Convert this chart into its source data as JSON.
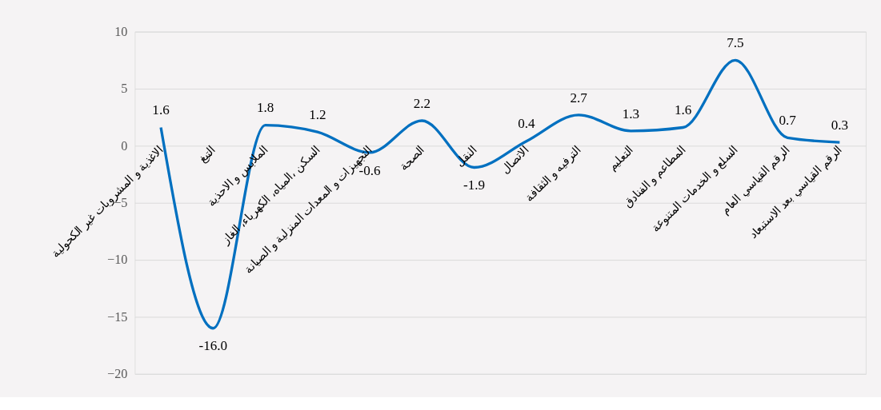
{
  "chart_data": {
    "type": "line",
    "categories": [
      "الاغذية و المشروبات غير الكحولية",
      "التبغ",
      "الملابس و الاحذية",
      "السكن ،المياه، الكهرباء، الغاز",
      "التجهيزات و المعدات المنزلية و الصيانة",
      "الصحة",
      "النقل",
      "الاتصال",
      "الترفيه و الثقافة",
      "التعليم",
      "المطاعم و الفنادق",
      "السلع و الخدمات المتنوعة",
      "الرقم القياسي العام",
      "الرقم القياسي بعد الاستبعاد"
    ],
    "series": [
      {
        "color": "#0070c0",
        "values": [
          1.6,
          -16.0,
          1.8,
          1.2,
          -0.6,
          2.2,
          -1.9,
          0.4,
          2.7,
          1.3,
          1.6,
          7.5,
          0.7,
          0.3
        ]
      }
    ],
    "ylim": [
      -20,
      10
    ],
    "yticks": [
      -20,
      -15,
      -10,
      -5,
      0,
      5,
      10
    ],
    "value_labels": [
      "1.6",
      "-16.0",
      "1.8",
      "1.2",
      "-0.6",
      "2.2",
      "-1.9",
      "0.4",
      "2.7",
      "1.3",
      "1.6",
      "7.5",
      "0.7",
      "0.3"
    ],
    "grid": "y",
    "marker": "none",
    "line_style": "solid"
  }
}
